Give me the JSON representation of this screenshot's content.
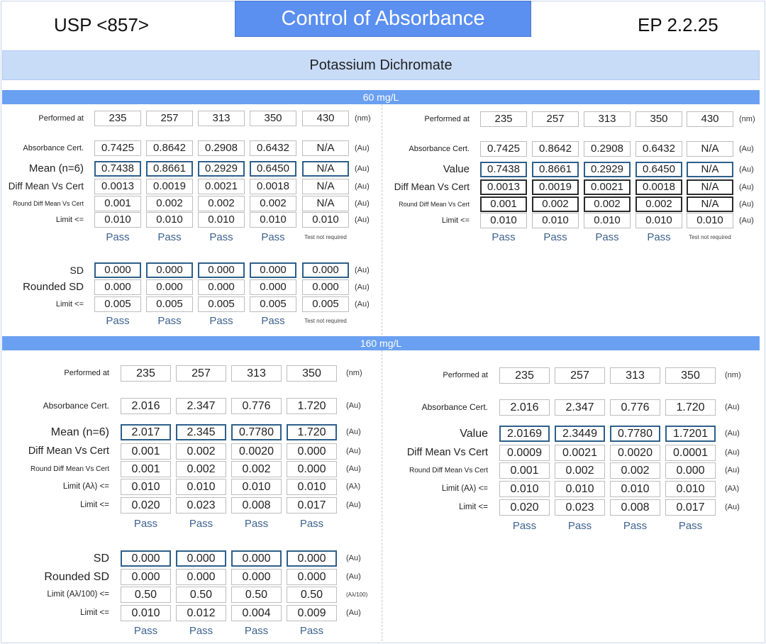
{
  "header": {
    "left": "USP <857>",
    "title": "Control of Absorbance",
    "right": "EP 2.2.25"
  },
  "subtitle": "Potassium Dichromate",
  "sections": {
    "s60": {
      "title": "60 mg/L",
      "left": {
        "performed_label": "Performed at",
        "performed": [
          "235",
          "257",
          "313",
          "350",
          "430"
        ],
        "performed_unit": "(nm)",
        "rows": [
          {
            "label": "Absorbance Cert.",
            "values": [
              "0.7425",
              "0.8642",
              "0.2908",
              "0.6432",
              "N/A"
            ],
            "unit": "(Au)"
          },
          {
            "label": "Mean (n=6)",
            "values": [
              "0.7438",
              "0.8661",
              "0.2929",
              "0.6450",
              "N/A"
            ],
            "unit": "(Au)"
          },
          {
            "label": "Diff Mean Vs Cert",
            "values": [
              "0.0013",
              "0.0019",
              "0.0021",
              "0.0018",
              "N/A"
            ],
            "unit": "(Au)"
          },
          {
            "label": "Round Diff Mean Vs Cert",
            "values": [
              "0.001",
              "0.002",
              "0.002",
              "0.002",
              "N/A"
            ],
            "unit": "(Au)"
          },
          {
            "label": "Limit <=",
            "values": [
              "0.010",
              "0.010",
              "0.010",
              "0.010",
              "0.010"
            ],
            "unit": "(Au)"
          }
        ],
        "results": [
          "Pass",
          "Pass",
          "Pass",
          "Pass",
          "Test not required"
        ],
        "sd_rows": [
          {
            "label": "SD",
            "values": [
              "0.000",
              "0.000",
              "0.000",
              "0.000",
              "0.000"
            ],
            "unit": "(Au)"
          },
          {
            "label": "Rounded SD",
            "values": [
              "0.000",
              "0.000",
              "0.000",
              "0.000",
              "0.000"
            ],
            "unit": "(Au)"
          },
          {
            "label": "Limit <=",
            "values": [
              "0.005",
              "0.005",
              "0.005",
              "0.005",
              "0.005"
            ],
            "unit": "(Au)"
          }
        ],
        "sd_results": [
          "Pass",
          "Pass",
          "Pass",
          "Pass",
          "Test not required"
        ]
      },
      "right": {
        "performed_label": "Performed at",
        "performed": [
          "235",
          "257",
          "313",
          "350",
          "430"
        ],
        "performed_unit": "(nm)",
        "rows": [
          {
            "label": "Absorbance Cert.",
            "values": [
              "0.7425",
              "0.8642",
              "0.2908",
              "0.6432",
              "N/A"
            ],
            "unit": "(Au)"
          },
          {
            "label": "Value",
            "values": [
              "0.7438",
              "0.8661",
              "0.2929",
              "0.6450",
              "N/A"
            ],
            "unit": "(Au)"
          },
          {
            "label": "Diff Mean Vs Cert",
            "values": [
              "0.0013",
              "0.0019",
              "0.0021",
              "0.0018",
              "N/A"
            ],
            "unit": "(Au)"
          },
          {
            "label": "Round Diff Mean Vs Cert",
            "values": [
              "0.001",
              "0.002",
              "0.002",
              "0.002",
              "N/A"
            ],
            "unit": "(Au)"
          },
          {
            "label": "Limit <=",
            "values": [
              "0.010",
              "0.010",
              "0.010",
              "0.010",
              "0.010"
            ],
            "unit": "(Au)"
          }
        ],
        "results": [
          "Pass",
          "Pass",
          "Pass",
          "Pass",
          "Test not required"
        ]
      }
    },
    "s160": {
      "title": "160 mg/L",
      "left": {
        "performed_label": "Performed at",
        "performed": [
          "235",
          "257",
          "313",
          "350"
        ],
        "performed_unit": "(nm)",
        "rows": [
          {
            "label": "Absorbance Cert.",
            "values": [
              "2.016",
              "2.347",
              "0.776",
              "1.720"
            ],
            "unit": "(Au)"
          },
          {
            "label": "Mean (n=6)",
            "values": [
              "2.017",
              "2.345",
              "0.7780",
              "1.720"
            ],
            "unit": "(Au)"
          },
          {
            "label": "Diff Mean Vs Cert",
            "values": [
              "0.001",
              "0.002",
              "0.0020",
              "0.000"
            ],
            "unit": "(Au)"
          },
          {
            "label": "Round Diff Mean Vs Cert",
            "values": [
              "0.001",
              "0.002",
              "0.002",
              "0.000"
            ],
            "unit": "(Au)"
          },
          {
            "label": "Limit (Aλ) <=",
            "values": [
              "0.010",
              "0.010",
              "0.010",
              "0.010"
            ],
            "unit": "(Aλ)"
          },
          {
            "label": "Limit <=",
            "values": [
              "0.020",
              "0.023",
              "0.008",
              "0.017"
            ],
            "unit": "(Au)"
          }
        ],
        "results": [
          "Pass",
          "Pass",
          "Pass",
          "Pass"
        ],
        "sd_rows": [
          {
            "label": "SD",
            "values": [
              "0.000",
              "0.000",
              "0.000",
              "0.000"
            ],
            "unit": "(Au)"
          },
          {
            "label": "Rounded SD",
            "values": [
              "0.000",
              "0.000",
              "0.000",
              "0.000"
            ],
            "unit": "(Au)"
          },
          {
            "label": "Limit (Aλ/100) <=",
            "values": [
              "0.50",
              "0.50",
              "0.50",
              "0.50"
            ],
            "unit": "(Aλ/100)"
          },
          {
            "label": "Limit <=",
            "values": [
              "0.010",
              "0.012",
              "0.004",
              "0.009"
            ],
            "unit": "(Au)"
          }
        ],
        "sd_results": [
          "Pass",
          "Pass",
          "Pass",
          "Pass"
        ]
      },
      "right": {
        "performed_label": "Performed at",
        "performed": [
          "235",
          "257",
          "313",
          "350"
        ],
        "performed_unit": "(nm)",
        "rows": [
          {
            "label": "Absorbance Cert.",
            "values": [
              "2.016",
              "2.347",
              "0.776",
              "1.720"
            ],
            "unit": "(Au)"
          },
          {
            "label": "Value",
            "values": [
              "2.0169",
              "2.3449",
              "0.7780",
              "1.7201"
            ],
            "unit": "(Au)"
          },
          {
            "label": "Diff Mean Vs Cert",
            "values": [
              "0.0009",
              "0.0021",
              "0.0020",
              "0.0001"
            ],
            "unit": "(Au)"
          },
          {
            "label": "Round Diff Mean Vs Cert",
            "values": [
              "0.001",
              "0.002",
              "0.002",
              "0.000"
            ],
            "unit": "(Au)"
          },
          {
            "label": "Limit (Aλ) <=",
            "values": [
              "0.010",
              "0.010",
              "0.010",
              "0.010"
            ],
            "unit": "(Aλ)"
          },
          {
            "label": "Limit <=",
            "values": [
              "0.020",
              "0.023",
              "0.008",
              "0.017"
            ],
            "unit": "(Au)"
          }
        ],
        "results": [
          "Pass",
          "Pass",
          "Pass",
          "Pass"
        ]
      }
    }
  }
}
